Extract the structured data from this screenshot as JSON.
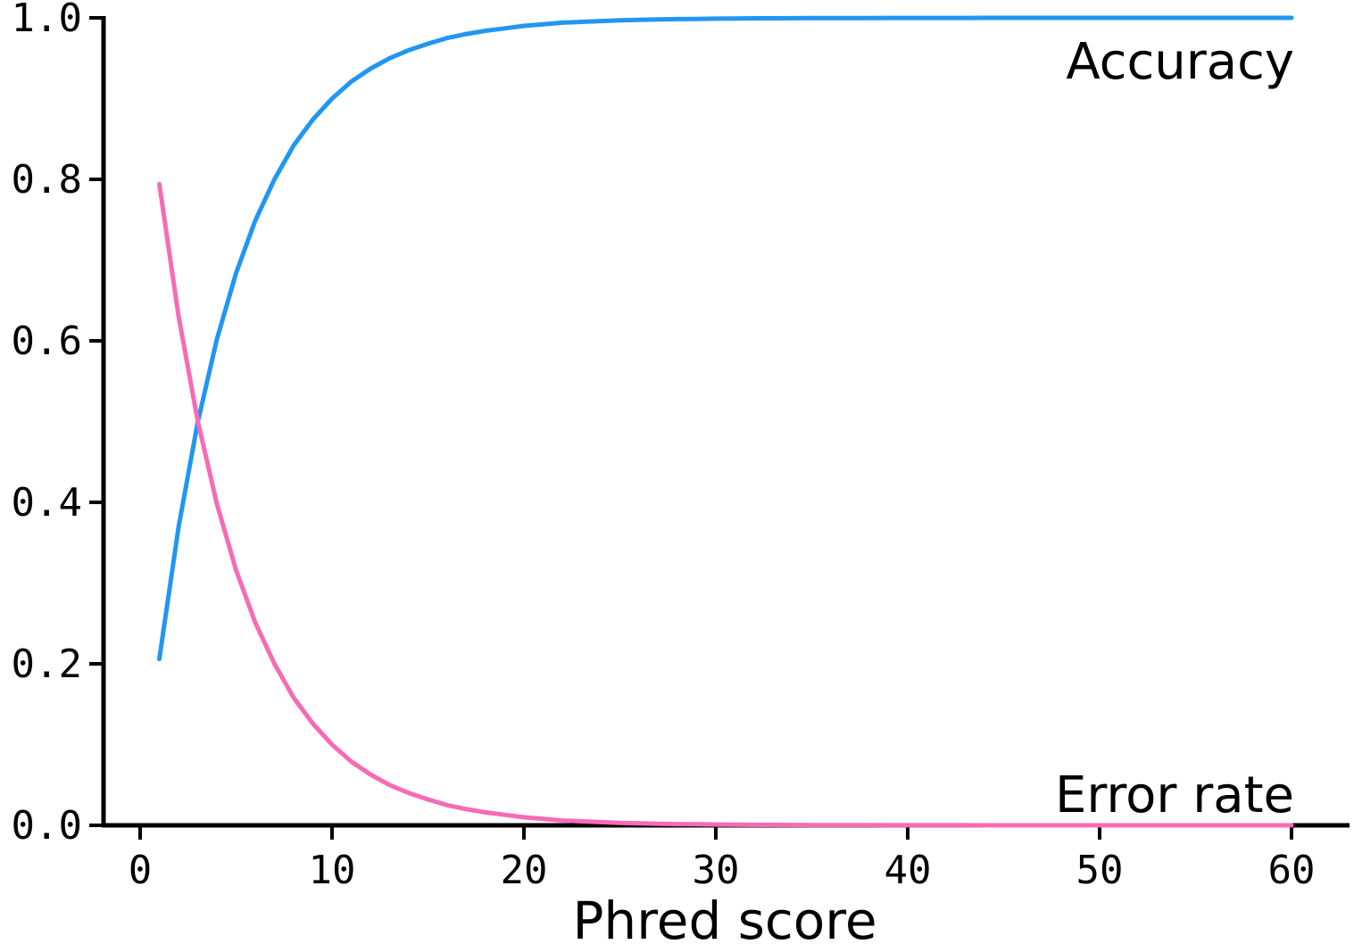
{
  "chart_data": {
    "type": "line",
    "title": "",
    "xlabel": "Phred score",
    "ylabel": "",
    "xlim": [
      -2,
      63
    ],
    "ylim": [
      0,
      1.0
    ],
    "x_ticks": [
      0,
      10,
      20,
      30,
      40,
      50,
      60
    ],
    "x_tick_labels": [
      "0",
      "10",
      "20",
      "30",
      "40",
      "50",
      "60"
    ],
    "y_ticks": [
      0.0,
      0.2,
      0.4,
      0.6,
      0.8,
      1.0
    ],
    "y_tick_labels": [
      "0.0",
      "0.2",
      "0.4",
      "0.6",
      "0.8",
      "1.0"
    ],
    "grid": false,
    "legend": "none",
    "x": [
      1,
      2,
      3,
      4,
      5,
      6,
      7,
      8,
      9,
      10,
      11,
      12,
      13,
      14,
      15,
      16,
      17,
      18,
      19,
      20,
      21,
      22,
      23,
      24,
      25,
      26,
      27,
      28,
      29,
      30,
      31,
      32,
      33,
      34,
      35,
      36,
      37,
      38,
      39,
      40,
      41,
      42,
      43,
      44,
      45,
      46,
      47,
      48,
      49,
      50,
      51,
      52,
      53,
      54,
      55,
      56,
      57,
      58,
      59,
      60
    ],
    "series": [
      {
        "name": "Accuracy",
        "color": "#2196F3",
        "label_position": "top-right",
        "values": [
          0.206,
          0.369,
          0.499,
          0.602,
          0.684,
          0.749,
          0.8,
          0.842,
          0.874,
          0.9,
          0.921,
          0.937,
          0.95,
          0.96,
          0.968,
          0.975,
          0.98,
          0.984,
          0.987,
          0.99,
          0.992,
          0.994,
          0.995,
          0.996,
          0.997,
          0.9975,
          0.998,
          0.9984,
          0.9987,
          0.999,
          0.9992,
          0.9994,
          0.9995,
          0.9996,
          0.9997,
          0.9997,
          0.9998,
          0.9998,
          0.9999,
          0.9999,
          0.9999,
          0.9999,
          0.9999,
          1.0,
          1.0,
          1.0,
          1.0,
          1.0,
          1.0,
          1.0,
          1.0,
          1.0,
          1.0,
          1.0,
          1.0,
          1.0,
          1.0,
          1.0,
          1.0,
          1.0
        ]
      },
      {
        "name": "Error rate",
        "color": "#F76BB5",
        "label_position": "bottom-right",
        "values": [
          0.794,
          0.631,
          0.501,
          0.398,
          0.316,
          0.251,
          0.2,
          0.158,
          0.126,
          0.1,
          0.079,
          0.063,
          0.05,
          0.04,
          0.032,
          0.025,
          0.02,
          0.016,
          0.013,
          0.01,
          0.008,
          0.006,
          0.005,
          0.004,
          0.003,
          0.0025,
          0.002,
          0.0016,
          0.0013,
          0.001,
          0.0008,
          0.0006,
          0.0005,
          0.0004,
          0.0003,
          0.0003,
          0.0002,
          0.0002,
          0.0001,
          0.0001,
          0.0001,
          0.0001,
          0.0001,
          0.0,
          0.0,
          0.0,
          0.0,
          0.0,
          0.0,
          0.0,
          0.0,
          0.0,
          0.0,
          0.0,
          0.0,
          0.0,
          0.0,
          0.0,
          0.0,
          0.0
        ]
      }
    ]
  }
}
